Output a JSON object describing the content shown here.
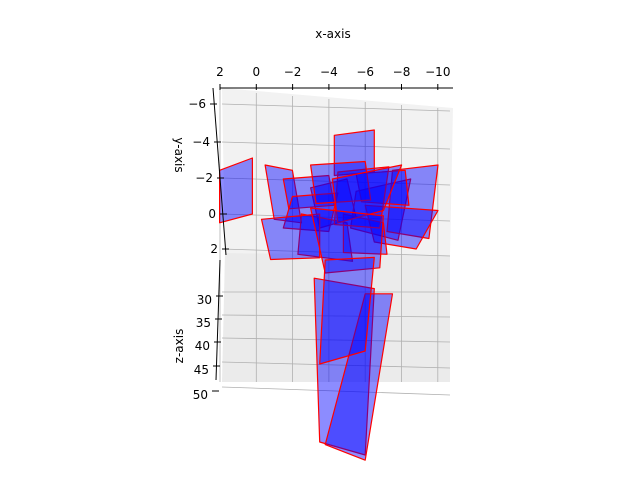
{
  "chart_data": {
    "type": "3d-poly",
    "title": "",
    "xlabel": "x-axis",
    "ylabel": "y-axis",
    "zlabel": "z-axis",
    "x_ticks": [
      "2",
      "0",
      "−2",
      "−4",
      "−6",
      "−8",
      "−10"
    ],
    "y_ticks": [
      "−6",
      "−4",
      "−2",
      "0",
      "2"
    ],
    "z_ticks": [
      "30",
      "35",
      "40",
      "45",
      "50"
    ],
    "xlim": [
      2.5,
      -10.5
    ],
    "ylim": [
      -6.5,
      3
    ],
    "zlim": [
      27,
      50
    ],
    "grid": true,
    "colors": {
      "face": "#0000ff",
      "edge": "#ff0000",
      "pane": "#f2f2f2",
      "grid": "#b0b0b0"
    },
    "polygons": [
      [
        [
          -6.5,
          -4.8,
          33
        ],
        [
          -4.3,
          -4.5,
          33
        ],
        [
          -4.3,
          -2.2,
          33
        ],
        [
          -6.5,
          -2.4,
          33
        ]
      ],
      [
        [
          0.2,
          -3.2,
          33
        ],
        [
          2.0,
          -2.5,
          33
        ],
        [
          2.0,
          0.5,
          33
        ],
        [
          0.2,
          0.0,
          33
        ]
      ],
      [
        [
          -5.0,
          -2.0,
          33
        ],
        [
          -3.0,
          -1.5,
          33
        ],
        [
          -3.5,
          0.8,
          33
        ],
        [
          -5.5,
          0.2,
          33
        ]
      ],
      [
        [
          -5.5,
          -1.3,
          33
        ],
        [
          -8.5,
          -2.0,
          33
        ],
        [
          -7.8,
          1.5,
          33
        ],
        [
          -5.2,
          0.8,
          33
        ]
      ],
      [
        [
          -7.5,
          -2.5,
          33
        ],
        [
          -10.0,
          -2.8,
          33
        ],
        [
          -9.5,
          1.4,
          33
        ],
        [
          -7.2,
          1.0,
          33
        ]
      ],
      [
        [
          -0.5,
          -2.8,
          33
        ],
        [
          -2.0,
          -2.5,
          33
        ],
        [
          -2.5,
          0.5,
          33
        ],
        [
          -1.0,
          0.3,
          33
        ]
      ],
      [
        [
          -1.5,
          -2.0,
          33
        ],
        [
          -4.0,
          -2.2,
          33
        ],
        [
          -4.3,
          -0.5,
          33
        ],
        [
          -1.8,
          -0.3,
          33
        ]
      ],
      [
        [
          -2.0,
          -1.0,
          33
        ],
        [
          -4.5,
          -1.2,
          33
        ],
        [
          -4.0,
          1.0,
          33
        ],
        [
          -1.5,
          0.8,
          33
        ]
      ],
      [
        [
          -6.0,
          -0.5,
          33
        ],
        [
          -10.0,
          -0.2,
          33
        ],
        [
          -8.8,
          2.0,
          33
        ],
        [
          -6.5,
          1.6,
          33
        ]
      ],
      [
        [
          -2.5,
          0.0,
          33
        ],
        [
          -5.0,
          0.5,
          33
        ],
        [
          -5.3,
          2.7,
          33
        ],
        [
          -2.3,
          2.3,
          33
        ]
      ],
      [
        [
          -4.8,
          0.0,
          33
        ],
        [
          -7.0,
          0.5,
          33
        ],
        [
          -7.2,
          2.3,
          33
        ],
        [
          -4.8,
          2.2,
          33
        ]
      ],
      [
        [
          -5.5,
          -2.3,
          33
        ],
        [
          -8.2,
          -2.5,
          33
        ],
        [
          -8.4,
          -0.5,
          33
        ],
        [
          -5.8,
          -0.7,
          33
        ]
      ],
      [
        [
          -0.3,
          0.3,
          33
        ],
        [
          -3.5,
          0.0,
          33
        ],
        [
          -3.5,
          2.5,
          33
        ],
        [
          -0.8,
          2.6,
          33
        ]
      ],
      [
        [
          -4.5,
          -2.4,
          33
        ],
        [
          -7.3,
          -2.7,
          33
        ],
        [
          -6.8,
          0.8,
          33
        ],
        [
          -4.3,
          0.6,
          33
        ]
      ],
      [
        [
          -3.0,
          -2.8,
          33
        ],
        [
          -6.0,
          -3.0,
          33
        ],
        [
          -6.3,
          -0.8,
          33
        ],
        [
          -3.3,
          -0.6,
          33
        ]
      ],
      [
        [
          -4.2,
          -2.0,
          33
        ],
        [
          -8.0,
          -2.8,
          33
        ],
        [
          -7.0,
          -0.2,
          33
        ],
        [
          -4.5,
          0.5,
          33
        ]
      ],
      [
        [
          -3.0,
          27.5,
          33
        ],
        [
          -7.0,
          27.8,
          33
        ],
        [
          -6.8,
          29.8,
          33
        ],
        [
          -3.8,
          30.0,
          33
        ]
      ],
      [
        [
          -3.2,
          30.2,
          33
        ],
        [
          -6.5,
          30.6,
          33
        ],
        [
          -6.0,
          37.0,
          33
        ],
        [
          -3.5,
          36.5,
          33
        ]
      ],
      [
        [
          -6.0,
          30.8,
          33
        ],
        [
          -7.5,
          30.8,
          33
        ],
        [
          -6.0,
          37.2,
          33
        ],
        [
          -3.8,
          36.6,
          33
        ]
      ],
      [
        [
          -3.8,
          29.5,
          33
        ],
        [
          -6.5,
          29.4,
          33
        ],
        [
          -6.0,
          33.0,
          33
        ],
        [
          -3.5,
          33.5,
          33
        ]
      ]
    ]
  }
}
